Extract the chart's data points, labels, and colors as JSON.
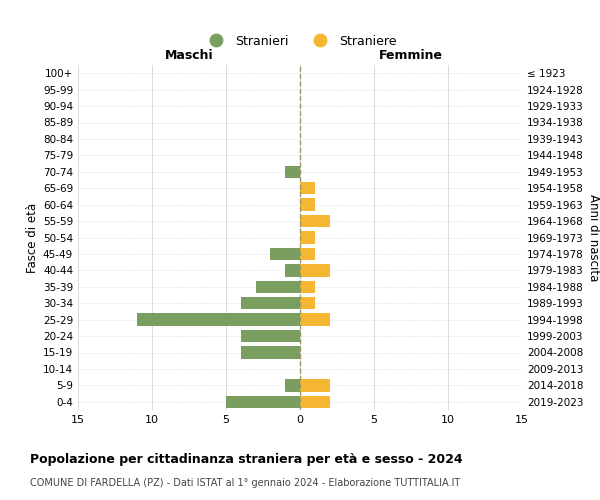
{
  "age_groups": [
    "100+",
    "95-99",
    "90-94",
    "85-89",
    "80-84",
    "75-79",
    "70-74",
    "65-69",
    "60-64",
    "55-59",
    "50-54",
    "45-49",
    "40-44",
    "35-39",
    "30-34",
    "25-29",
    "20-24",
    "15-19",
    "10-14",
    "5-9",
    "0-4"
  ],
  "birth_years": [
    "≤ 1923",
    "1924-1928",
    "1929-1933",
    "1934-1938",
    "1939-1943",
    "1944-1948",
    "1949-1953",
    "1954-1958",
    "1959-1963",
    "1964-1968",
    "1969-1973",
    "1974-1978",
    "1979-1983",
    "1984-1988",
    "1989-1993",
    "1994-1998",
    "1999-2003",
    "2004-2008",
    "2009-2013",
    "2014-2018",
    "2019-2023"
  ],
  "males": [
    0,
    0,
    0,
    0,
    0,
    0,
    1,
    0,
    0,
    0,
    0,
    2,
    1,
    3,
    4,
    11,
    4,
    4,
    0,
    1,
    5
  ],
  "females": [
    0,
    0,
    0,
    0,
    0,
    0,
    0,
    1,
    1,
    2,
    1,
    1,
    2,
    1,
    1,
    2,
    0,
    0,
    0,
    2,
    2
  ],
  "male_color": "#7a9e5f",
  "female_color": "#f5b731",
  "center_line_color": "#999966",
  "grid_color": "#cccccc",
  "bg_color": "#ffffff",
  "title": "Popolazione per cittadinanza straniera per età e sesso - 2024",
  "subtitle": "COMUNE DI FARDELLA (PZ) - Dati ISTAT al 1° gennaio 2024 - Elaborazione TUTTITALIA.IT",
  "xlabel_left": "Maschi",
  "xlabel_right": "Femmine",
  "ylabel_left": "Fasce di età",
  "ylabel_right": "Anni di nascita",
  "legend_male": "Stranieri",
  "legend_female": "Straniere",
  "xlim": 15,
  "bar_height": 0.75
}
